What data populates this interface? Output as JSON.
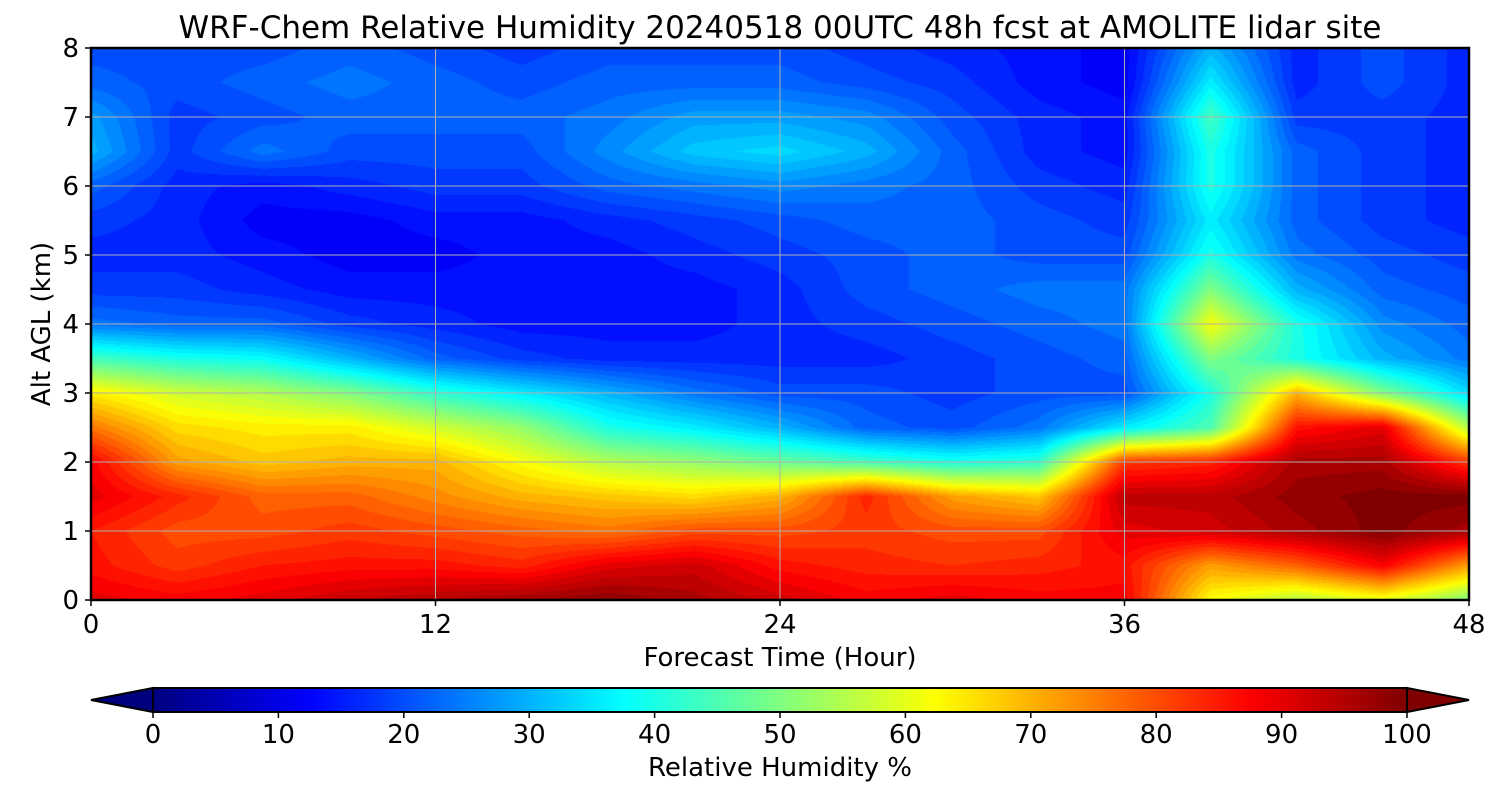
{
  "chart_data": {
    "type": "heatmap",
    "title": "WRF-Chem Relative Humidity 20240518 00UTC 48h fcst at AMOLITE lidar site",
    "xlabel": "Forecast Time (Hour)",
    "ylabel": "Alt AGL (km)",
    "xlim": [
      0,
      48
    ],
    "ylim": [
      0,
      8
    ],
    "x_ticks": [
      0,
      12,
      24,
      36,
      48
    ],
    "y_ticks": [
      0,
      1,
      2,
      3,
      4,
      5,
      6,
      7,
      8
    ],
    "grid": true,
    "colormap": "jet",
    "colorbar": {
      "label": "Relative Humidity %",
      "min": 0,
      "max": 100,
      "ticks": [
        0,
        10,
        20,
        30,
        40,
        50,
        60,
        70,
        80,
        90,
        100
      ],
      "orientation": "horizontal",
      "extend": "both"
    },
    "x": [
      0,
      3,
      6,
      9,
      12,
      15,
      18,
      21,
      24,
      27,
      30,
      33,
      36,
      39,
      42,
      45,
      48
    ],
    "y": [
      0,
      0.5,
      1,
      1.5,
      2,
      2.5,
      3,
      3.5,
      4,
      4.5,
      5,
      5.5,
      6,
      6.5,
      7,
      7.5,
      8
    ],
    "z": [
      [
        90,
        88,
        90,
        93,
        95,
        97,
        99,
        96,
        92,
        88,
        90,
        88,
        88,
        62,
        55,
        60,
        50
      ],
      [
        86,
        82,
        85,
        86,
        86,
        84,
        90,
        92,
        86,
        84,
        83,
        84,
        86,
        72,
        78,
        88,
        72
      ],
      [
        85,
        80,
        80,
        82,
        80,
        78,
        76,
        80,
        80,
        82,
        80,
        80,
        90,
        92,
        96,
        100,
        96
      ],
      [
        90,
        84,
        78,
        78,
        74,
        70,
        68,
        66,
        70,
        84,
        72,
        68,
        94,
        94,
        98,
        100,
        100
      ],
      [
        88,
        72,
        68,
        70,
        70,
        62,
        55,
        52,
        48,
        44,
        40,
        42,
        82,
        84,
        96,
        96,
        82
      ],
      [
        76,
        66,
        64,
        64,
        58,
        52,
        40,
        36,
        30,
        22,
        20,
        24,
        36,
        45,
        86,
        90,
        55
      ],
      [
        64,
        58,
        55,
        50,
        42,
        36,
        30,
        24,
        20,
        20,
        18,
        20,
        20,
        40,
        70,
        50,
        34
      ],
      [
        44,
        40,
        38,
        30,
        22,
        18,
        16,
        16,
        16,
        16,
        18,
        20,
        22,
        50,
        40,
        30,
        24
      ],
      [
        24,
        22,
        22,
        18,
        16,
        14,
        14,
        14,
        16,
        18,
        20,
        22,
        24,
        62,
        40,
        26,
        22
      ],
      [
        18,
        18,
        16,
        14,
        14,
        14,
        14,
        14,
        16,
        20,
        22,
        24,
        24,
        50,
        30,
        22,
        20
      ],
      [
        16,
        16,
        14,
        12,
        12,
        14,
        14,
        16,
        18,
        20,
        22,
        20,
        20,
        40,
        24,
        20,
        18
      ],
      [
        18,
        16,
        12,
        12,
        14,
        14,
        16,
        18,
        20,
        22,
        22,
        20,
        18,
        36,
        22,
        18,
        16
      ],
      [
        22,
        16,
        14,
        16,
        18,
        18,
        22,
        24,
        26,
        24,
        22,
        18,
        16,
        40,
        22,
        18,
        16
      ],
      [
        30,
        18,
        24,
        20,
        20,
        20,
        26,
        32,
        34,
        30,
        22,
        16,
        14,
        40,
        22,
        18,
        16
      ],
      [
        28,
        18,
        20,
        22,
        22,
        22,
        24,
        28,
        28,
        26,
        20,
        16,
        14,
        44,
        18,
        18,
        16
      ],
      [
        22,
        20,
        22,
        24,
        22,
        20,
        22,
        22,
        22,
        20,
        18,
        14,
        12,
        36,
        16,
        20,
        16
      ],
      [
        20,
        20,
        20,
        22,
        20,
        18,
        20,
        20,
        20,
        18,
        16,
        14,
        12,
        30,
        16,
        20,
        16
      ]
    ]
  }
}
